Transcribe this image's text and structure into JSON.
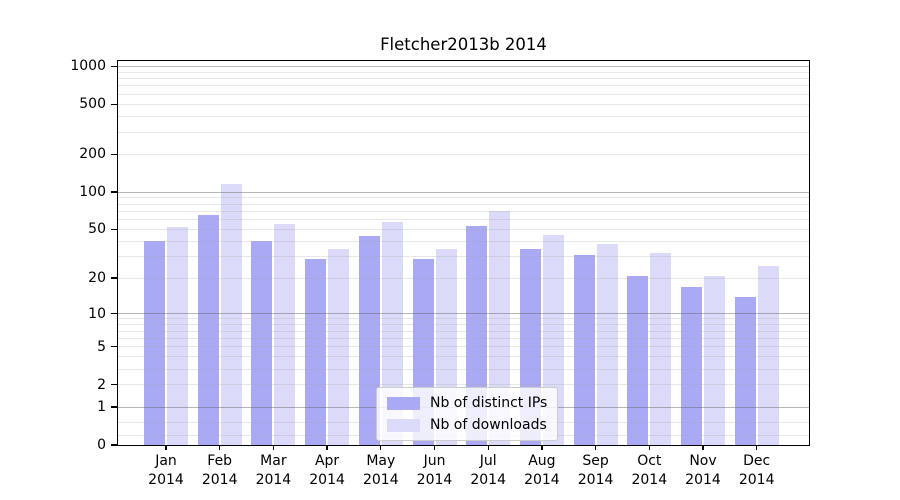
{
  "title": "Fletcher2013b 2014",
  "chart_data": {
    "type": "bar",
    "title": "Fletcher2013b 2014",
    "categories": [
      "Jan 2014",
      "Feb 2014",
      "Mar 2014",
      "Apr 2014",
      "May 2014",
      "Jun 2014",
      "Jul 2014",
      "Aug 2014",
      "Sep 2014",
      "Oct 2014",
      "Nov 2014",
      "Dec 2014"
    ],
    "x_months": [
      "Jan",
      "Feb",
      "Mar",
      "Apr",
      "May",
      "Jun",
      "Jul",
      "Aug",
      "Sep",
      "Oct",
      "Nov",
      "Dec"
    ],
    "x_year": "2014",
    "series": [
      {
        "name": "Nb of distinct IPs",
        "color": "#a9a9f4",
        "values": [
          40,
          65,
          40,
          29,
          44,
          29,
          53,
          35,
          31,
          21,
          17,
          14
        ]
      },
      {
        "name": "Nb of downloads",
        "color": "#dbdbf9",
        "values": [
          52,
          115,
          55,
          35,
          57,
          35,
          70,
          45,
          38,
          32,
          21,
          25
        ]
      }
    ],
    "y_ticks": [
      0,
      1,
      2,
      5,
      10,
      20,
      50,
      100,
      200,
      500,
      1000
    ],
    "y_scale": "log10(value+1)",
    "ylim": [
      0,
      1100
    ],
    "grid": true,
    "legend": {
      "position": "lower center",
      "labels": [
        "Nb of distinct IPs",
        "Nb of downloads"
      ]
    }
  }
}
